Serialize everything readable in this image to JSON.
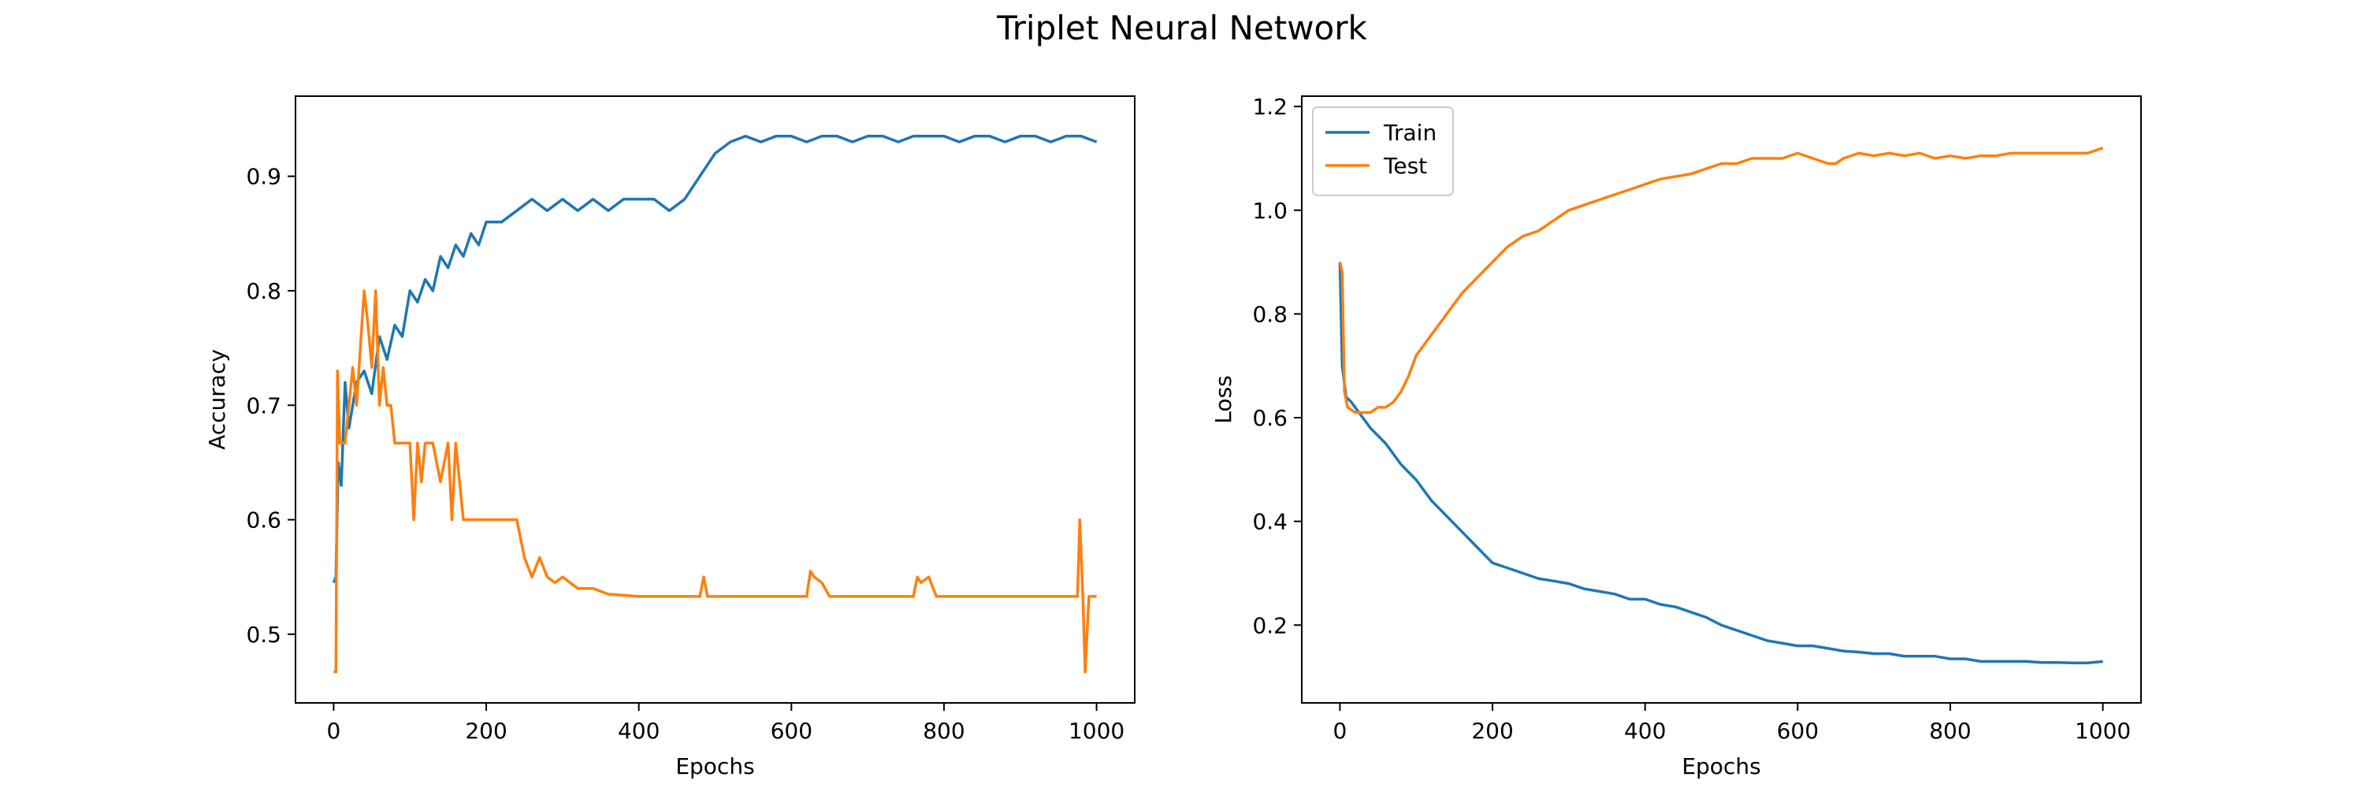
{
  "figure": {
    "title": "Triplet Neural Network"
  },
  "chart_data": [
    {
      "type": "line",
      "xlabel": "Epochs",
      "ylabel": "Accuracy",
      "xlim": [
        -50,
        1050
      ],
      "ylim": [
        0.44,
        0.97
      ],
      "xticks": [
        0,
        200,
        400,
        600,
        800,
        1000
      ],
      "yticks": [
        0.5,
        0.6,
        0.7,
        0.8,
        0.9
      ],
      "grid": false,
      "legend": "none",
      "series": [
        {
          "color": "#1f77b4",
          "points": [
            [
              0,
              0.545
            ],
            [
              3,
              0.55
            ],
            [
              6,
              0.65
            ],
            [
              10,
              0.63
            ],
            [
              15,
              0.72
            ],
            [
              20,
              0.68
            ],
            [
              25,
              0.7
            ],
            [
              30,
              0.72
            ],
            [
              40,
              0.73
            ],
            [
              50,
              0.71
            ],
            [
              60,
              0.76
            ],
            [
              70,
              0.74
            ],
            [
              80,
              0.77
            ],
            [
              90,
              0.76
            ],
            [
              100,
              0.8
            ],
            [
              110,
              0.79
            ],
            [
              120,
              0.81
            ],
            [
              130,
              0.8
            ],
            [
              140,
              0.83
            ],
            [
              150,
              0.82
            ],
            [
              160,
              0.84
            ],
            [
              170,
              0.83
            ],
            [
              180,
              0.85
            ],
            [
              190,
              0.84
            ],
            [
              200,
              0.86
            ],
            [
              220,
              0.86
            ],
            [
              240,
              0.87
            ],
            [
              260,
              0.88
            ],
            [
              280,
              0.87
            ],
            [
              300,
              0.88
            ],
            [
              320,
              0.87
            ],
            [
              340,
              0.88
            ],
            [
              360,
              0.87
            ],
            [
              380,
              0.88
            ],
            [
              400,
              0.88
            ],
            [
              420,
              0.88
            ],
            [
              440,
              0.87
            ],
            [
              460,
              0.88
            ],
            [
              470,
              0.89
            ],
            [
              480,
              0.9
            ],
            [
              490,
              0.91
            ],
            [
              500,
              0.92
            ],
            [
              520,
              0.93
            ],
            [
              540,
              0.935
            ],
            [
              560,
              0.93
            ],
            [
              580,
              0.935
            ],
            [
              600,
              0.935
            ],
            [
              620,
              0.93
            ],
            [
              640,
              0.935
            ],
            [
              660,
              0.935
            ],
            [
              680,
              0.93
            ],
            [
              700,
              0.935
            ],
            [
              720,
              0.935
            ],
            [
              740,
              0.93
            ],
            [
              760,
              0.935
            ],
            [
              780,
              0.935
            ],
            [
              800,
              0.935
            ],
            [
              820,
              0.93
            ],
            [
              840,
              0.935
            ],
            [
              860,
              0.935
            ],
            [
              880,
              0.93
            ],
            [
              900,
              0.935
            ],
            [
              920,
              0.935
            ],
            [
              940,
              0.93
            ],
            [
              960,
              0.935
            ],
            [
              980,
              0.935
            ],
            [
              1000,
              0.93
            ]
          ]
        },
        {
          "color": "#ff7f0e",
          "points": [
            [
              0,
              0.467
            ],
            [
              3,
              0.467
            ],
            [
              5,
              0.73
            ],
            [
              8,
              0.667
            ],
            [
              15,
              0.667
            ],
            [
              20,
              0.7
            ],
            [
              25,
              0.733
            ],
            [
              30,
              0.7
            ],
            [
              35,
              0.75
            ],
            [
              40,
              0.8
            ],
            [
              45,
              0.77
            ],
            [
              50,
              0.733
            ],
            [
              55,
              0.8
            ],
            [
              60,
              0.7
            ],
            [
              65,
              0.733
            ],
            [
              70,
              0.7
            ],
            [
              75,
              0.7
            ],
            [
              80,
              0.667
            ],
            [
              90,
              0.667
            ],
            [
              100,
              0.667
            ],
            [
              105,
              0.6
            ],
            [
              110,
              0.667
            ],
            [
              115,
              0.633
            ],
            [
              120,
              0.667
            ],
            [
              130,
              0.667
            ],
            [
              140,
              0.633
            ],
            [
              150,
              0.667
            ],
            [
              155,
              0.6
            ],
            [
              160,
              0.667
            ],
            [
              170,
              0.6
            ],
            [
              200,
              0.6
            ],
            [
              240,
              0.6
            ],
            [
              250,
              0.567
            ],
            [
              260,
              0.55
            ],
            [
              270,
              0.567
            ],
            [
              280,
              0.55
            ],
            [
              290,
              0.545
            ],
            [
              300,
              0.55
            ],
            [
              320,
              0.54
            ],
            [
              340,
              0.54
            ],
            [
              360,
              0.535
            ],
            [
              400,
              0.533
            ],
            [
              480,
              0.533
            ],
            [
              485,
              0.55
            ],
            [
              490,
              0.533
            ],
            [
              540,
              0.533
            ],
            [
              620,
              0.533
            ],
            [
              625,
              0.555
            ],
            [
              630,
              0.55
            ],
            [
              640,
              0.545
            ],
            [
              650,
              0.533
            ],
            [
              760,
              0.533
            ],
            [
              765,
              0.55
            ],
            [
              770,
              0.545
            ],
            [
              780,
              0.55
            ],
            [
              790,
              0.533
            ],
            [
              975,
              0.533
            ],
            [
              978,
              0.6
            ],
            [
              982,
              0.533
            ],
            [
              985,
              0.467
            ],
            [
              990,
              0.533
            ],
            [
              1000,
              0.533
            ]
          ]
        }
      ]
    },
    {
      "type": "line",
      "xlabel": "Epochs",
      "ylabel": "Loss",
      "xlim": [
        -50,
        1050
      ],
      "ylim": [
        0.05,
        1.22
      ],
      "xticks": [
        0,
        200,
        400,
        600,
        800,
        1000
      ],
      "yticks": [
        0.2,
        0.4,
        0.6,
        0.8,
        1.0,
        1.2
      ],
      "grid": false,
      "legend": "top-left",
      "series": [
        {
          "name": "Train",
          "color": "#1f77b4",
          "points": [
            [
              0,
              0.9
            ],
            [
              3,
              0.7
            ],
            [
              8,
              0.64
            ],
            [
              15,
              0.63
            ],
            [
              25,
              0.61
            ],
            [
              40,
              0.58
            ],
            [
              60,
              0.55
            ],
            [
              80,
              0.51
            ],
            [
              100,
              0.48
            ],
            [
              120,
              0.44
            ],
            [
              140,
              0.41
            ],
            [
              160,
              0.38
            ],
            [
              180,
              0.35
            ],
            [
              200,
              0.32
            ],
            [
              220,
              0.31
            ],
            [
              240,
              0.3
            ],
            [
              260,
              0.29
            ],
            [
              280,
              0.285
            ],
            [
              300,
              0.28
            ],
            [
              320,
              0.27
            ],
            [
              340,
              0.265
            ],
            [
              360,
              0.26
            ],
            [
              380,
              0.25
            ],
            [
              400,
              0.25
            ],
            [
              420,
              0.24
            ],
            [
              440,
              0.235
            ],
            [
              460,
              0.225
            ],
            [
              480,
              0.215
            ],
            [
              500,
              0.2
            ],
            [
              520,
              0.19
            ],
            [
              540,
              0.18
            ],
            [
              560,
              0.17
            ],
            [
              580,
              0.165
            ],
            [
              600,
              0.16
            ],
            [
              620,
              0.16
            ],
            [
              640,
              0.155
            ],
            [
              660,
              0.15
            ],
            [
              680,
              0.148
            ],
            [
              700,
              0.145
            ],
            [
              720,
              0.145
            ],
            [
              740,
              0.14
            ],
            [
              760,
              0.14
            ],
            [
              780,
              0.14
            ],
            [
              800,
              0.135
            ],
            [
              820,
              0.135
            ],
            [
              840,
              0.13
            ],
            [
              860,
              0.13
            ],
            [
              880,
              0.13
            ],
            [
              900,
              0.13
            ],
            [
              920,
              0.128
            ],
            [
              940,
              0.128
            ],
            [
              960,
              0.127
            ],
            [
              980,
              0.127
            ],
            [
              1000,
              0.13
            ]
          ]
        },
        {
          "name": "Test",
          "color": "#ff7f0e",
          "points": [
            [
              0,
              0.9
            ],
            [
              3,
              0.88
            ],
            [
              6,
              0.65
            ],
            [
              10,
              0.62
            ],
            [
              20,
              0.61
            ],
            [
              30,
              0.61
            ],
            [
              40,
              0.61
            ],
            [
              50,
              0.62
            ],
            [
              60,
              0.62
            ],
            [
              70,
              0.63
            ],
            [
              80,
              0.65
            ],
            [
              90,
              0.68
            ],
            [
              100,
              0.72
            ],
            [
              120,
              0.76
            ],
            [
              140,
              0.8
            ],
            [
              160,
              0.84
            ],
            [
              180,
              0.87
            ],
            [
              200,
              0.9
            ],
            [
              220,
              0.93
            ],
            [
              240,
              0.95
            ],
            [
              260,
              0.96
            ],
            [
              280,
              0.98
            ],
            [
              300,
              1.0
            ],
            [
              320,
              1.01
            ],
            [
              340,
              1.02
            ],
            [
              360,
              1.03
            ],
            [
              380,
              1.04
            ],
            [
              400,
              1.05
            ],
            [
              420,
              1.06
            ],
            [
              440,
              1.065
            ],
            [
              460,
              1.07
            ],
            [
              480,
              1.08
            ],
            [
              500,
              1.09
            ],
            [
              520,
              1.09
            ],
            [
              540,
              1.1
            ],
            [
              560,
              1.1
            ],
            [
              580,
              1.1
            ],
            [
              600,
              1.11
            ],
            [
              620,
              1.1
            ],
            [
              640,
              1.09
            ],
            [
              650,
              1.09
            ],
            [
              660,
              1.1
            ],
            [
              680,
              1.11
            ],
            [
              700,
              1.105
            ],
            [
              720,
              1.11
            ],
            [
              740,
              1.105
            ],
            [
              760,
              1.11
            ],
            [
              780,
              1.1
            ],
            [
              800,
              1.105
            ],
            [
              820,
              1.1
            ],
            [
              840,
              1.105
            ],
            [
              860,
              1.105
            ],
            [
              880,
              1.11
            ],
            [
              900,
              1.11
            ],
            [
              920,
              1.11
            ],
            [
              940,
              1.11
            ],
            [
              960,
              1.11
            ],
            [
              980,
              1.11
            ],
            [
              1000,
              1.12
            ]
          ]
        }
      ]
    }
  ]
}
